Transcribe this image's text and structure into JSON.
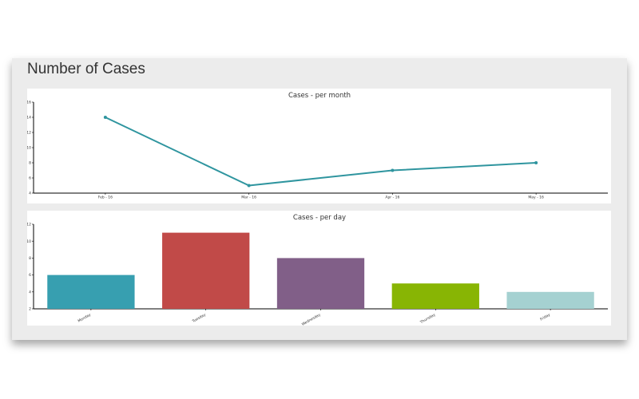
{
  "page": {
    "title": "Number of Cases"
  },
  "colors": {
    "panel_bg": "#ececec",
    "card_bg": "#ffffff",
    "line_series": "#2f959f",
    "axis": "#000000"
  },
  "chart_data": [
    {
      "type": "line",
      "title": "Cases - per month",
      "xlabel": "",
      "ylabel": "",
      "categories": [
        "Feb - 16",
        "Mar - 16",
        "Apr - 16",
        "May - 16"
      ],
      "values": [
        14,
        5,
        7,
        8
      ],
      "ylim": [
        4,
        16
      ],
      "yticks": [
        4,
        6,
        8,
        10,
        12,
        14,
        16
      ],
      "grid": false,
      "legend": "none",
      "color": "#2f959f"
    },
    {
      "type": "bar",
      "title": "Cases  - per day",
      "xlabel": "",
      "ylabel": "",
      "categories": [
        "Monday",
        "Tuesday",
        "Wednesday",
        "Thursday",
        "Friday"
      ],
      "values": [
        6,
        11,
        8,
        5,
        4
      ],
      "ylim": [
        2,
        12
      ],
      "yticks": [
        2,
        4,
        6,
        8,
        10,
        12
      ],
      "grid": false,
      "legend": "none",
      "colors": [
        "#379fb0",
        "#c14a48",
        "#815f88",
        "#88b504",
        "#a5d1d1"
      ]
    }
  ]
}
